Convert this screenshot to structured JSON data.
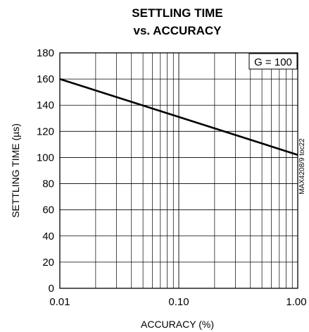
{
  "chart_data": {
    "type": "line",
    "title_lines": [
      "SETTLING TIME",
      "vs. ACCURACY"
    ],
    "xlabel": "ACCURACY (%)",
    "ylabel": "SETTLING TIME (µs)",
    "x_scale": "log",
    "xlim": [
      0.01,
      1.0
    ],
    "ylim": [
      0,
      180
    ],
    "x_ticks": [
      0.01,
      0.1,
      1.0
    ],
    "x_tick_labels": [
      "0.01",
      "0.10",
      "1.00"
    ],
    "y_ticks": [
      0,
      20,
      40,
      60,
      80,
      100,
      120,
      140,
      160,
      180
    ],
    "y_tick_labels": [
      "0",
      "20",
      "40",
      "60",
      "80",
      "100",
      "120",
      "140",
      "160",
      "180"
    ],
    "grid": true,
    "annotation": "G = 100",
    "side_label": "MAX4208/9 toc22",
    "series": [
      {
        "x": [
          0.01,
          0.1,
          1.0
        ],
        "y": [
          160,
          131,
          102
        ]
      }
    ]
  }
}
